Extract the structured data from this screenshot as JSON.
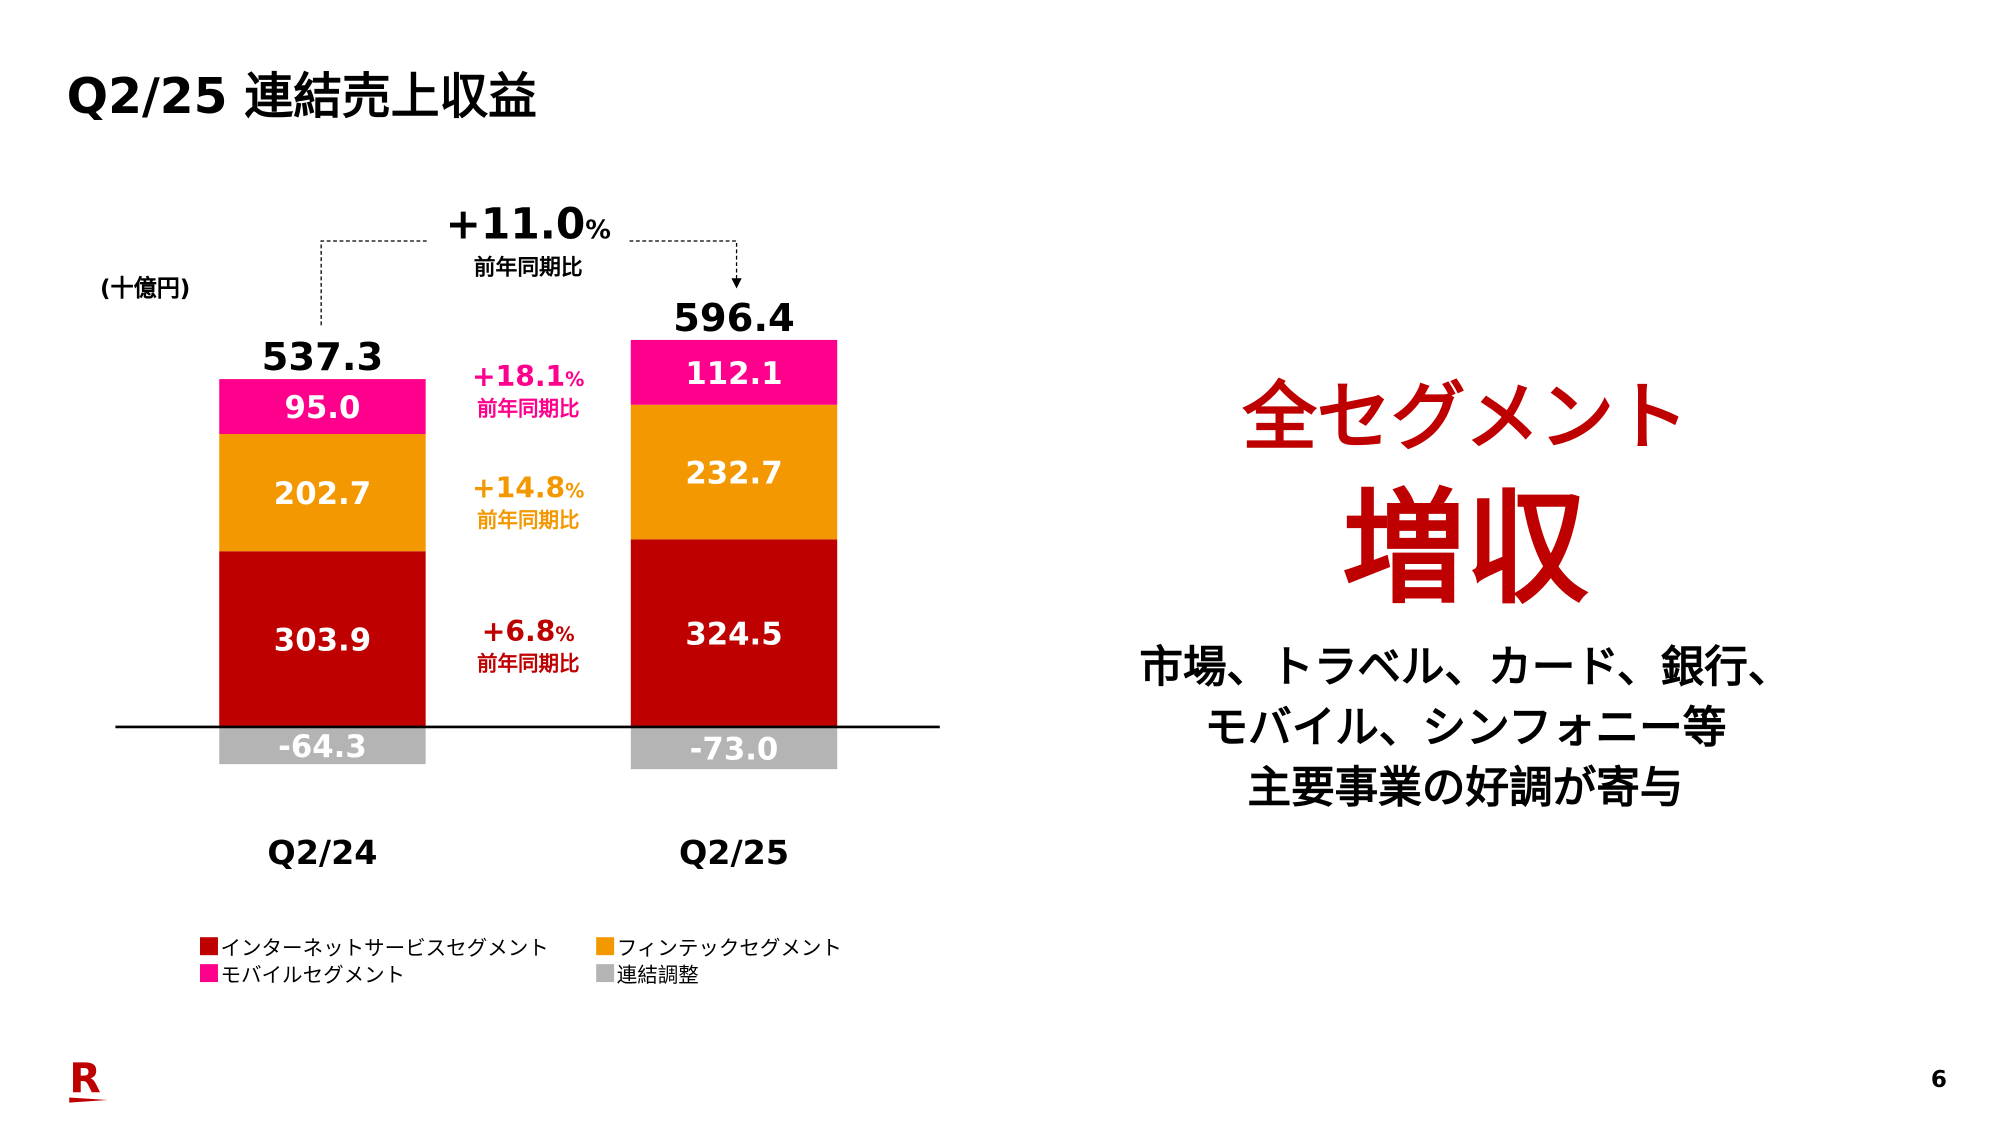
{
  "title": "Q2/25 連結売上収益",
  "unit_label": "(十億円)",
  "headline": "全セグメント",
  "headline_big": "増収",
  "description": [
    "市場、トラベル、カード、銀行、",
    "モバイル、シンフォニー等",
    "主要事業の好調が寄与"
  ],
  "page_number": "6",
  "logo_text": "R",
  "chart_data": {
    "type": "bar",
    "stacked": true,
    "categories": [
      "Q2/24",
      "Q2/25"
    ],
    "series": [
      {
        "name": "インターネットサービスセグメント",
        "values": [
          303.9,
          324.5
        ],
        "color": "#bf0000"
      },
      {
        "name": "フィンテックセグメント",
        "values": [
          202.7,
          232.7
        ],
        "color": "#f39800"
      },
      {
        "name": "モバイルセグメント",
        "values": [
          95.0,
          112.1
        ],
        "color": "#ff008c"
      },
      {
        "name": "連結調整",
        "values": [
          -64.3,
          -73.0
        ],
        "color": "#b4b4b4"
      }
    ],
    "totals": [
      "537.3",
      "596.4"
    ],
    "segment_labels": [
      [
        "303.9",
        "202.7",
        "95.0",
        "-64.3"
      ],
      [
        "324.5",
        "232.7",
        "112.1",
        "-73.0"
      ]
    ],
    "growth": [
      {
        "value": "+6.8",
        "unit": "%",
        "label": "前年同期比",
        "color": "#bf0000"
      },
      {
        "value": "+14.8",
        "unit": "%",
        "label": "前年同期比",
        "color": "#f39800"
      },
      {
        "value": "+18.1",
        "unit": "%",
        "label": "前年同期比",
        "color": "#ff008c"
      }
    ],
    "total_growth": {
      "value": "+11.0",
      "unit": "%",
      "label": "前年同期比"
    },
    "ylabel": "(十億円)",
    "grid": false,
    "legend_position": "bottom"
  }
}
